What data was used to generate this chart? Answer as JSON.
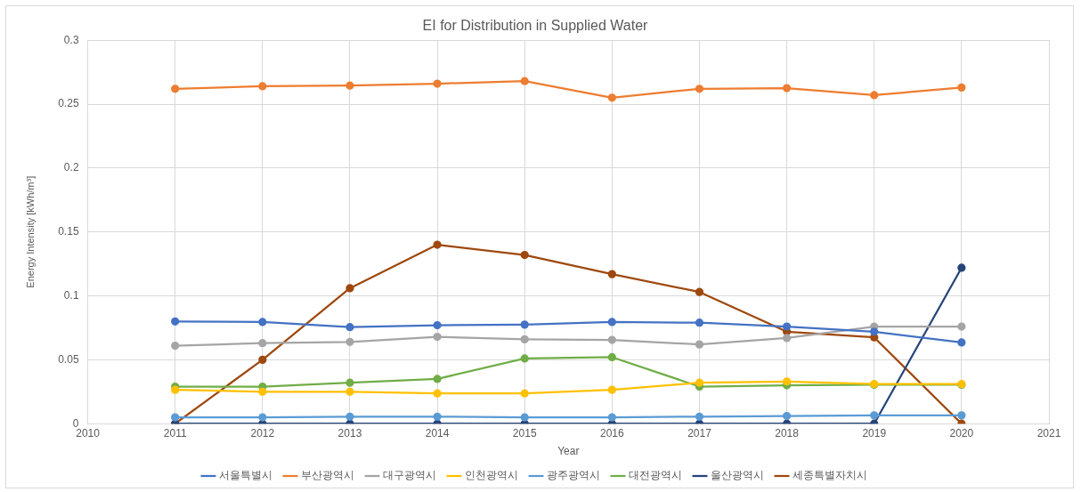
{
  "chart_data": {
    "type": "line",
    "title": "EI for Distribution in Supplied Water",
    "xlabel": "Year",
    "ylabel": "Energy Intensity [kWh/m³]",
    "x": [
      2011,
      2012,
      2013,
      2014,
      2015,
      2016,
      2017,
      2018,
      2019,
      2020
    ],
    "series": [
      {
        "name": "서울특별시",
        "color": "#4472c4",
        "values": [
          0.08,
          0.0795,
          0.0755,
          0.077,
          0.0775,
          0.0795,
          0.079,
          0.076,
          0.072,
          0.0635
        ]
      },
      {
        "name": "부산광역시",
        "color": "#ed7d31",
        "values": [
          0.262,
          0.264,
          0.2645,
          0.266,
          0.268,
          0.255,
          0.262,
          0.2625,
          0.257,
          0.263
        ]
      },
      {
        "name": "대구광역시",
        "color": "#a5a5a5",
        "values": [
          0.061,
          0.063,
          0.064,
          0.068,
          0.066,
          0.0655,
          0.062,
          0.067,
          0.076,
          0.076
        ]
      },
      {
        "name": "인천광역시",
        "color": "#ffc000",
        "values": [
          0.0265,
          0.025,
          0.025,
          0.0237,
          0.0237,
          0.0265,
          0.032,
          0.033,
          0.031,
          0.031
        ]
      },
      {
        "name": "광주광역시",
        "color": "#5b9bd5",
        "values": [
          0.005,
          0.005,
          0.0055,
          0.0055,
          0.005,
          0.005,
          0.0055,
          0.006,
          0.0065,
          0.0065
        ]
      },
      {
        "name": "대전광역시",
        "color": "#70ad47",
        "values": [
          0.029,
          0.029,
          0.032,
          0.035,
          0.051,
          0.052,
          0.029,
          0.03,
          0.0305,
          0.0305
        ]
      },
      {
        "name": "울산광역시",
        "color": "#264478",
        "values": [
          0,
          0,
          0,
          0,
          0,
          0,
          0,
          0,
          0,
          0.122
        ]
      },
      {
        "name": "세종특별자치시",
        "color": "#9e480e",
        "values": [
          0,
          0.05,
          0.106,
          0.14,
          0.132,
          0.117,
          0.103,
          0.072,
          0.0675,
          0
        ]
      }
    ],
    "xlim": [
      2010,
      2021
    ],
    "xticks": [
      2010,
      2011,
      2012,
      2013,
      2014,
      2015,
      2016,
      2017,
      2018,
      2019,
      2020,
      2021
    ],
    "ylim": [
      0,
      0.3
    ],
    "yticks": [
      0,
      0.05,
      0.1,
      0.15,
      0.2,
      0.25,
      0.3
    ],
    "grid": true,
    "legend": "bottom",
    "marker": "circle",
    "line_style": "solid"
  }
}
